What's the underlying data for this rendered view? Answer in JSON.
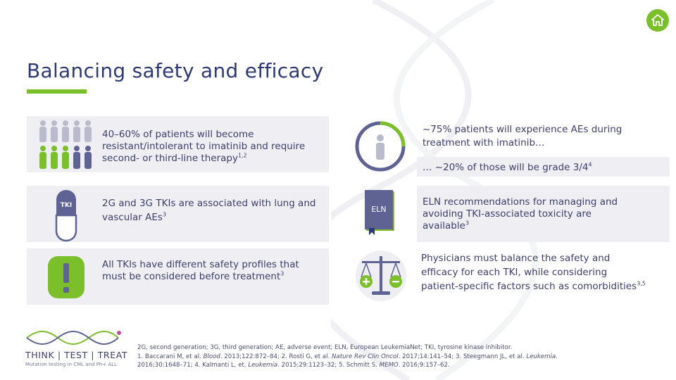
{
  "title": "Balancing safety and efficacy",
  "colors": {
    "accent": "#7bbf2a",
    "navy": "#2e3a78",
    "purple": "#6a6fa8",
    "panel": "#eeeef3"
  },
  "icons": {
    "home": "home-icon",
    "people": "people-icon",
    "pill": "pill-icon",
    "alert": "exclamation-icon",
    "person_ring": "person-ring-icon",
    "book": "book-icon",
    "scale": "balance-scale-icon"
  },
  "left": {
    "item1": {
      "text": "40–60% of patients will become resistant/intolerant to imatinib and require second- or third-line therapy",
      "sup": "1,2"
    },
    "item2": {
      "badge": "TKI",
      "text": "2G and 3G TKIs are associated with lung and vascular AEs",
      "sup": "3"
    },
    "item3": {
      "text": "All TKIs have different safety profiles that must be considered before treatment",
      "sup": "3"
    }
  },
  "right": {
    "item1": {
      "text": "~75% patients will experience AEs during treatment with imatinib…",
      "sub_text": "… ~20% of those will be grade 3/4",
      "sub_sup": "4"
    },
    "item2": {
      "badge": "ELN",
      "text": "ELN recommendations for managing and avoiding TKI-associated toxicity are available",
      "sup": "3"
    },
    "item3": {
      "text": "Physicians must balance the safety and efficacy for each TKI, while considering patient-specific factors such as comorbidities",
      "sup": "3,5"
    }
  },
  "footnote": {
    "abbrev": "2G, second generation; 3G, third generation; AE, adverse event; ELN, European LeukemiaNet; TKI, tyrosine kinase inhibitor.",
    "ref1_pre": "1. Baccarani M, et al. ",
    "ref1_journal": "Blood",
    "ref1_post": ". 2013;122:872–84; 2. Rosti G, et al. ",
    "ref2_journal": "Nature Rev Clin Oncol",
    "ref2_post": ". 2017;14:141–54; 3. Steegmann JL, et al. ",
    "ref3_journal": "Leukemia",
    "ref3_post": ".",
    "line3_pre": "2016;30:1648–71; 4. Kalmanti L, et. ",
    "ref4_journal": "Leukemia",
    "ref4_post": ". 2015;29:1123–32; 5. Schmitt S. ",
    "ref5_journal": "MEMO",
    "ref5_post": ". 2016;9:157–62."
  },
  "logo": {
    "name": "THINK | TEST | TREAT",
    "tagline": "Mutation testing in CML and Ph+ ALL"
  }
}
